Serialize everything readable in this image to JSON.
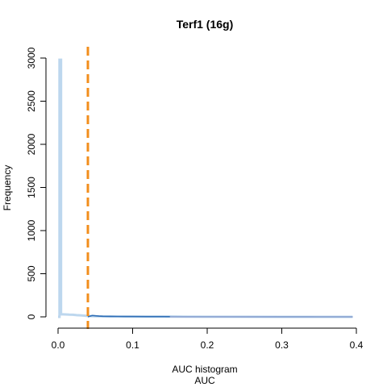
{
  "chart_data": {
    "type": "histogram",
    "title": "Terf1 (16g)",
    "xlabel_lines": [
      "AUC histogram",
      "AUC"
    ],
    "ylabel": "Frequency",
    "xlim": [
      0,
      0.4
    ],
    "ylim": [
      0,
      3000
    ],
    "x_ticks": [
      "0.0",
      "0.1",
      "0.2",
      "0.3",
      "0.4"
    ],
    "y_ticks": [
      "0",
      "500",
      "1000",
      "1500",
      "2000",
      "2500",
      "3000"
    ],
    "grid": false,
    "threshold": {
      "x": 0.04,
      "color": "#f28e1c",
      "style": "dashed"
    },
    "series": [
      {
        "color": "#bdd7ee",
        "points": [
          [
            0.0,
            0
          ],
          [
            0.002,
            0
          ],
          [
            0.002,
            2980
          ],
          [
            0.004,
            2980
          ],
          [
            0.004,
            30
          ],
          [
            0.01,
            28
          ],
          [
            0.015,
            25
          ],
          [
            0.02,
            24
          ],
          [
            0.025,
            20
          ],
          [
            0.03,
            18
          ],
          [
            0.035,
            14
          ],
          [
            0.04,
            10
          ],
          [
            0.045,
            8
          ],
          [
            0.05,
            7
          ],
          [
            0.06,
            6
          ],
          [
            0.07,
            5
          ],
          [
            0.08,
            4
          ],
          [
            0.1,
            3
          ],
          [
            0.12,
            2
          ],
          [
            0.15,
            2
          ],
          [
            0.2,
            1
          ],
          [
            0.25,
            1
          ],
          [
            0.3,
            0
          ],
          [
            0.395,
            0
          ]
        ]
      },
      {
        "color": "#2f6db5",
        "points": [
          [
            0.04,
            0
          ],
          [
            0.042,
            6
          ],
          [
            0.046,
            16
          ],
          [
            0.05,
            12
          ],
          [
            0.055,
            8
          ],
          [
            0.06,
            7
          ],
          [
            0.07,
            6
          ],
          [
            0.08,
            5
          ],
          [
            0.09,
            4
          ],
          [
            0.1,
            4
          ],
          [
            0.12,
            3
          ],
          [
            0.14,
            3
          ],
          [
            0.17,
            2
          ],
          [
            0.2,
            2
          ],
          [
            0.25,
            1
          ],
          [
            0.3,
            1
          ],
          [
            0.35,
            0
          ],
          [
            0.395,
            0
          ]
        ]
      },
      {
        "color": "#9fb0d8",
        "points": [
          [
            0.15,
            1
          ],
          [
            0.2,
            1
          ],
          [
            0.25,
            1
          ],
          [
            0.3,
            0
          ],
          [
            0.35,
            0
          ],
          [
            0.395,
            0
          ]
        ]
      }
    ]
  }
}
